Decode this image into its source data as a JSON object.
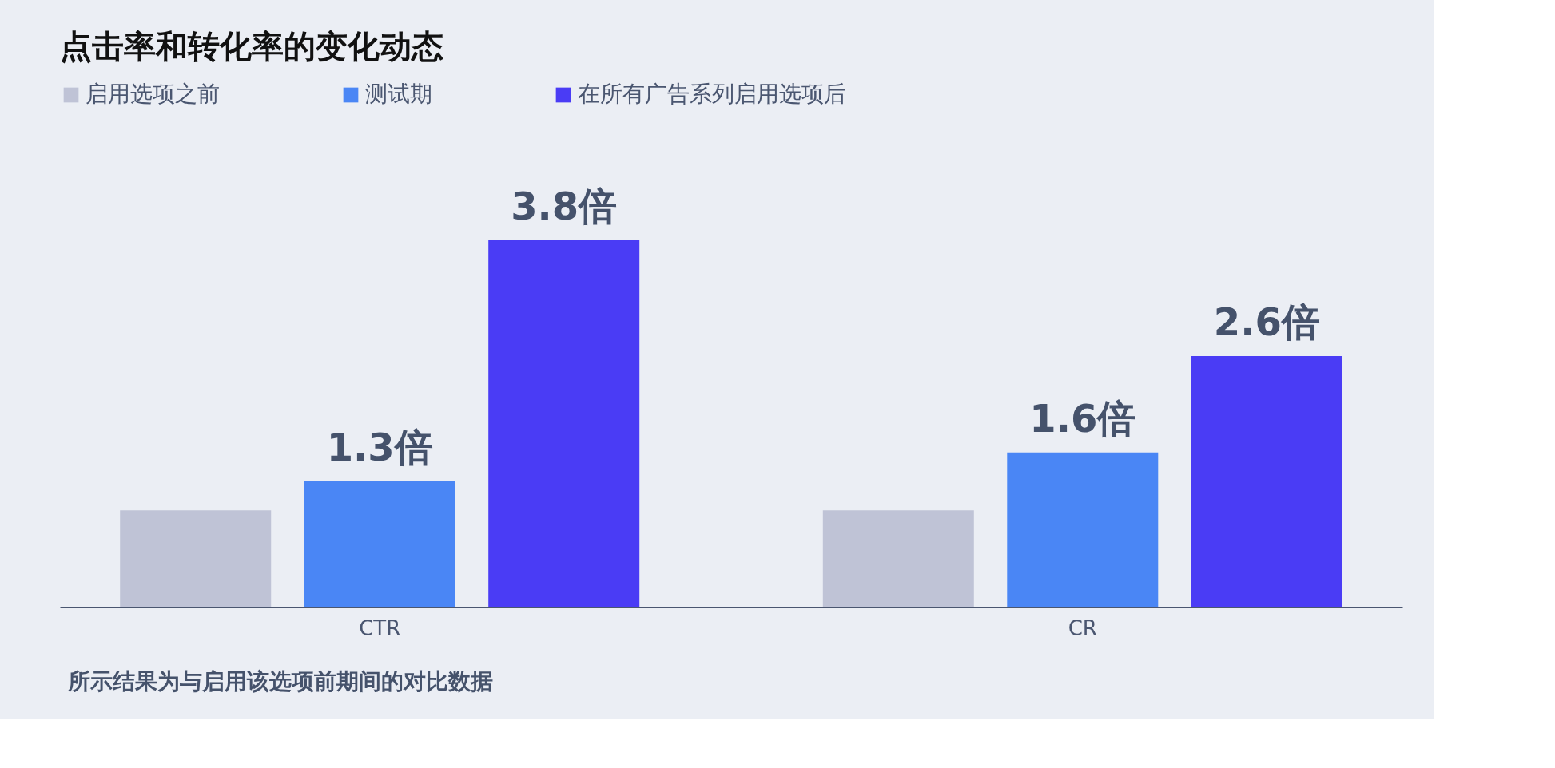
{
  "chart_data": {
    "type": "bar",
    "title": "点击率和转化率的变化动态",
    "categories": [
      "CTR",
      "CR"
    ],
    "legend": "top left",
    "tick_labels": "x",
    "series": [
      {
        "name": "启用选项之前",
        "color": "#bfc3d6",
        "values": [
          1,
          1
        ],
        "value_labels": [
          null,
          null
        ]
      },
      {
        "name": "测试期",
        "color": "#4a86f5",
        "values": [
          1.3,
          1.6
        ],
        "value_labels": [
          "1.3倍",
          "1.6倍"
        ]
      },
      {
        "name": "在所有广告系列启用选项后",
        "color": "#4a3cf5",
        "values": [
          3.8,
          2.6
        ],
        "value_labels": [
          "3.8倍",
          "2.6倍"
        ]
      }
    ],
    "annotations": [
      "所示结果为与启用该选项前期间的对比数据"
    ]
  }
}
